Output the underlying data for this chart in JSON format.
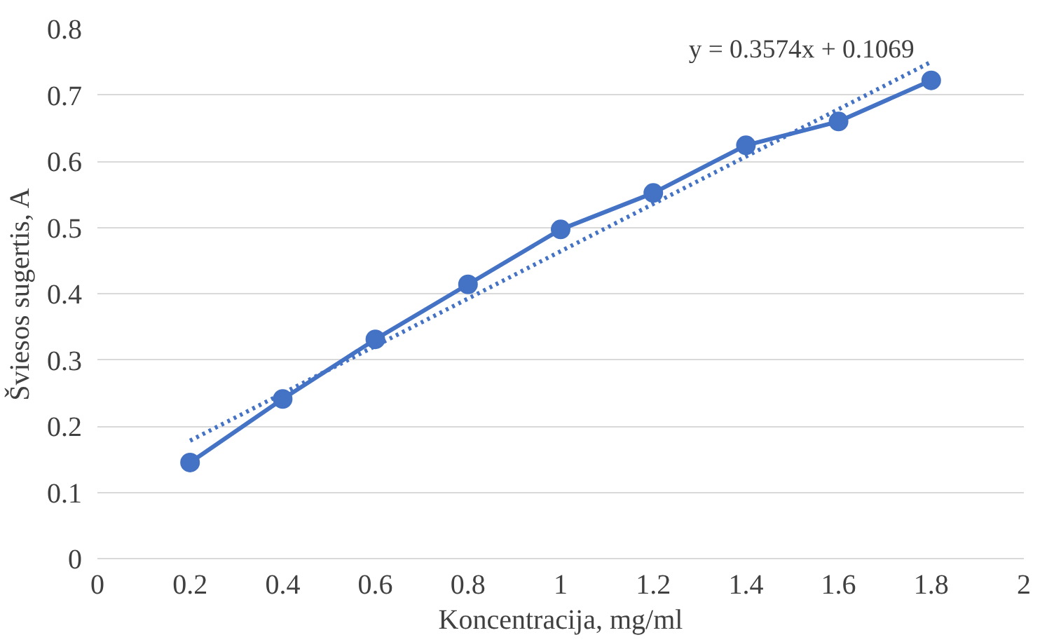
{
  "chart_data": {
    "type": "line",
    "xlabel": "Koncentracija, mg/ml",
    "ylabel": "Šviesos sugertis, A",
    "x": [
      0.2,
      0.4,
      0.6,
      0.8,
      1.0,
      1.2,
      1.4,
      1.6,
      1.8
    ],
    "series": [
      {
        "color": "#4472c4",
        "values": [
          0.145,
          0.241,
          0.331,
          0.414,
          0.497,
          0.552,
          0.624,
          0.66,
          0.722
        ],
        "marker": "circle",
        "line_style": "solid"
      },
      {
        "type": "line",
        "color": "#4472c4",
        "x": [
          0.2,
          1.8
        ],
        "values": [
          0.178,
          0.75
        ],
        "marker": "none",
        "line_style": "dotted"
      }
    ],
    "annotations": [
      "y = 0.3574x + 0.1069"
    ],
    "xlim": [
      0,
      2
    ],
    "xticks": [
      0,
      0.2,
      0.4,
      0.6,
      0.8,
      1,
      1.2,
      1.4,
      1.6,
      1.8,
      2
    ],
    "ylim": [
      0,
      0.8
    ],
    "yticks": [
      0,
      0.1,
      0.2,
      0.3,
      0.4,
      0.5,
      0.6,
      0.7,
      0.8
    ],
    "grid": "y"
  }
}
